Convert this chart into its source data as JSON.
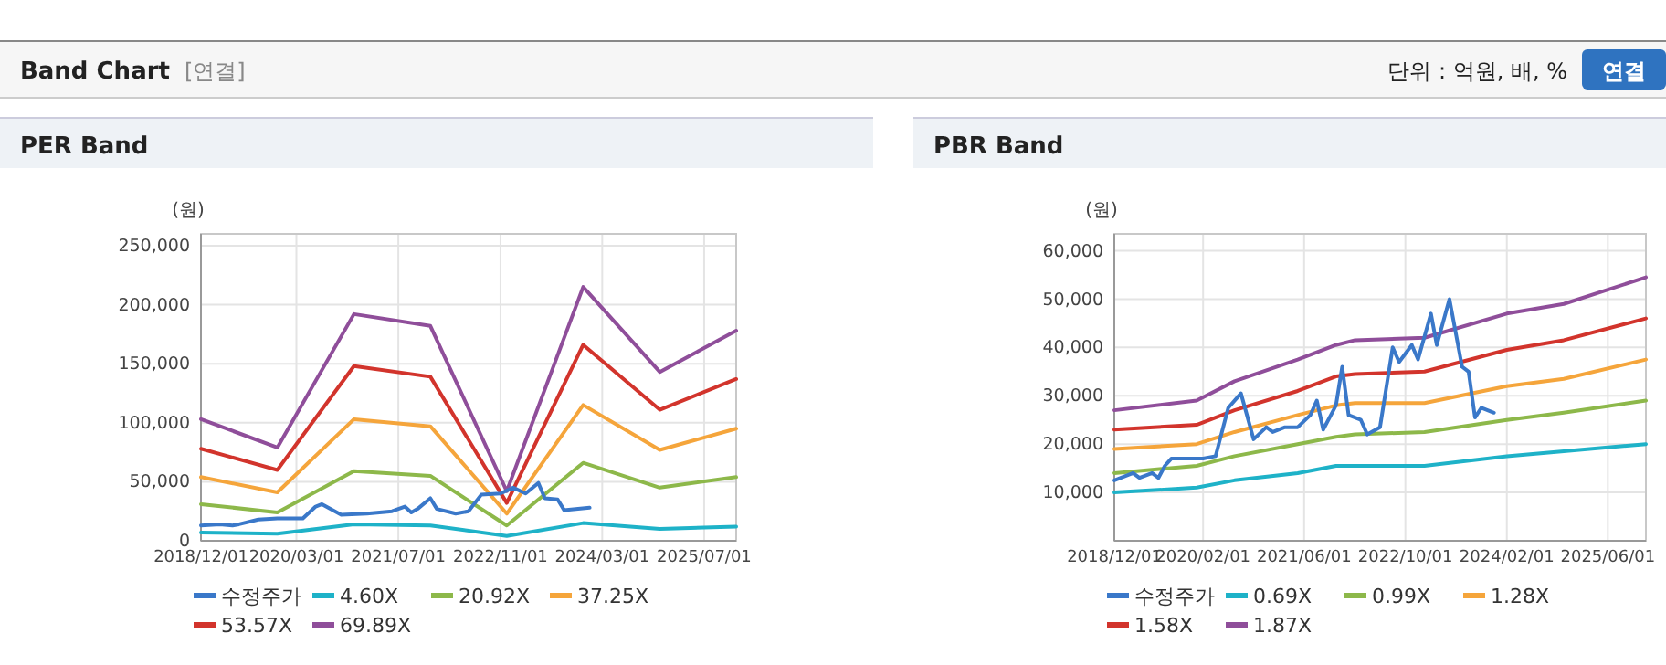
{
  "chart_data": [
    {
      "type": "other",
      "title": "Band Chart",
      "annotations": [
        "[연결]",
        "단위 : 억원, 배, %",
        "연결"
      ]
    },
    {
      "type": "line",
      "title": "PER Band",
      "ylabel": "(원)",
      "legend": "bottom",
      "grid": true,
      "marker": "none",
      "line_style": "solid",
      "xlim": [
        "2018-12",
        "2025-12"
      ],
      "xticks": [
        {
          "value": "2018-12",
          "label": "2018/12/01"
        },
        {
          "value": "2020-03",
          "label": "2020/03/01"
        },
        {
          "value": "2021-07",
          "label": "2021/07/01"
        },
        {
          "value": "2022-11",
          "label": "2022/11/01"
        },
        {
          "value": "2024-03",
          "label": "2024/03/01"
        },
        {
          "value": "2025-07",
          "label": "2025/07/01"
        }
      ],
      "ylim": [
        0,
        260000
      ],
      "yticks": [
        {
          "value": 0,
          "label": "0"
        },
        {
          "value": 50000,
          "label": "50,000"
        },
        {
          "value": 100000,
          "label": "100,000"
        },
        {
          "value": 150000,
          "label": "150,000"
        },
        {
          "value": 200000,
          "label": "200,000"
        },
        {
          "value": 250000,
          "label": "250,000"
        }
      ],
      "series": [
        {
          "name": "수정주가",
          "color": "#3a78c9",
          "x": [
            "2018-12",
            "2019-03",
            "2019-05",
            "2019-06",
            "2019-09",
            "2019-12",
            "2020-04",
            "2020-06",
            "2020-07",
            "2020-10",
            "2021-02",
            "2021-06",
            "2021-08",
            "2021-09",
            "2021-10",
            "2021-12",
            "2022-01",
            "2022-04",
            "2022-06",
            "2022-08",
            "2022-11",
            "2023-01",
            "2023-03",
            "2023-05",
            "2023-06",
            "2023-08",
            "2023-09",
            "2024-01"
          ],
          "values": [
            13000,
            14000,
            13000,
            14000,
            18000,
            19000,
            19000,
            29000,
            31000,
            22000,
            23000,
            25000,
            29000,
            24000,
            27000,
            36000,
            27000,
            23000,
            25000,
            39000,
            40000,
            45000,
            40000,
            49000,
            36000,
            35000,
            26000,
            28000
          ]
        },
        {
          "name": "4.60X",
          "color": "#1eb2c8",
          "x": [
            "2018-12",
            "2019-12",
            "2020-12",
            "2021-12",
            "2022-12",
            "2023-12",
            "2024-12",
            "2025-12"
          ],
          "values": [
            7000,
            6000,
            14000,
            13000,
            4000,
            15000,
            10000,
            12000
          ]
        },
        {
          "name": "20.92X",
          "color": "#8db84a",
          "x": [
            "2018-12",
            "2019-12",
            "2020-12",
            "2021-12",
            "2022-12",
            "2023-12",
            "2024-12",
            "2025-12"
          ],
          "values": [
            31000,
            24000,
            59000,
            55000,
            13000,
            66000,
            45000,
            54000
          ]
        },
        {
          "name": "37.25X",
          "color": "#f5a53b",
          "x": [
            "2018-12",
            "2019-12",
            "2020-12",
            "2021-12",
            "2022-12",
            "2023-12",
            "2024-12",
            "2025-12"
          ],
          "values": [
            54000,
            41000,
            103000,
            97000,
            23000,
            115000,
            77000,
            95000
          ]
        },
        {
          "name": "53.57X",
          "color": "#d2342c",
          "x": [
            "2018-12",
            "2019-12",
            "2020-12",
            "2021-12",
            "2022-12",
            "2023-12",
            "2024-12",
            "2025-12"
          ],
          "values": [
            78000,
            60000,
            148000,
            139000,
            32000,
            166000,
            111000,
            137000
          ]
        },
        {
          "name": "69.89X",
          "color": "#8f4e9a",
          "x": [
            "2018-12",
            "2019-12",
            "2020-12",
            "2021-12",
            "2022-12",
            "2023-12",
            "2024-12",
            "2025-12"
          ],
          "values": [
            103000,
            79000,
            192000,
            182000,
            42000,
            215000,
            143000,
            178000
          ]
        }
      ]
    },
    {
      "type": "line",
      "title": "PBR Band",
      "ylabel": "(원)",
      "legend": "bottom",
      "grid": true,
      "marker": "none",
      "line_style": "solid",
      "xlim": [
        "2018-12",
        "2025-12"
      ],
      "xticks": [
        {
          "value": "2018-12",
          "label": "2018/12/01"
        },
        {
          "value": "2020-02",
          "label": "2020/02/01"
        },
        {
          "value": "2021-06",
          "label": "2021/06/01"
        },
        {
          "value": "2022-10",
          "label": "2022/10/01"
        },
        {
          "value": "2024-02",
          "label": "2024/02/01"
        },
        {
          "value": "2025-06",
          "label": "2025/06/01"
        }
      ],
      "ylim": [
        0,
        63500
      ],
      "yticks": [
        {
          "value": 10000,
          "label": "10,000"
        },
        {
          "value": 20000,
          "label": "20,000"
        },
        {
          "value": 30000,
          "label": "30,000"
        },
        {
          "value": 40000,
          "label": "40,000"
        },
        {
          "value": 50000,
          "label": "50,000"
        },
        {
          "value": 60000,
          "label": "60,000"
        }
      ],
      "series": [
        {
          "name": "수정주가",
          "color": "#3a78c9",
          "x": [
            "2018-12",
            "2019-01",
            "2019-03",
            "2019-04",
            "2019-06",
            "2019-07",
            "2019-08",
            "2019-09",
            "2019-12",
            "2020-02",
            "2020-04",
            "2020-06",
            "2020-08",
            "2020-10",
            "2020-12",
            "2021-01",
            "2021-03",
            "2021-05",
            "2021-07",
            "2021-08",
            "2021-09",
            "2021-11",
            "2021-12",
            "2022-01",
            "2022-03",
            "2022-04",
            "2022-06",
            "2022-08",
            "2022-09",
            "2022-11",
            "2022-12",
            "2023-02",
            "2023-03",
            "2023-05",
            "2023-07",
            "2023-08",
            "2023-09",
            "2023-10",
            "2023-12"
          ],
          "values": [
            12500,
            13000,
            14000,
            13000,
            14000,
            13000,
            15500,
            17000,
            17000,
            17000,
            17500,
            27500,
            30500,
            21000,
            23500,
            22500,
            23500,
            23500,
            26000,
            29000,
            23000,
            28000,
            36000,
            26000,
            25000,
            22000,
            23500,
            40000,
            37000,
            40500,
            37500,
            47000,
            40500,
            50000,
            36000,
            35000,
            25500,
            27500,
            26500
          ]
        },
        {
          "name": "0.69X",
          "color": "#1eb2c8",
          "x": [
            "2018-12",
            "2020-01",
            "2020-07",
            "2021-05",
            "2021-11",
            "2022-02",
            "2023-01",
            "2024-02",
            "2024-11",
            "2025-12"
          ],
          "values": [
            10000,
            11000,
            12500,
            14000,
            15500,
            15500,
            15500,
            17500,
            18500,
            20000
          ]
        },
        {
          "name": "0.99X",
          "color": "#8db84a",
          "x": [
            "2018-12",
            "2020-01",
            "2020-07",
            "2021-05",
            "2021-11",
            "2022-02",
            "2023-01",
            "2024-02",
            "2024-11",
            "2025-12"
          ],
          "values": [
            14000,
            15500,
            17500,
            20000,
            21500,
            22000,
            22500,
            25000,
            26500,
            29000
          ]
        },
        {
          "name": "1.28X",
          "color": "#f5a53b",
          "x": [
            "2018-12",
            "2020-01",
            "2020-07",
            "2021-05",
            "2021-11",
            "2022-02",
            "2023-01",
            "2024-02",
            "2024-11",
            "2025-12"
          ],
          "values": [
            19000,
            20000,
            22500,
            26000,
            28000,
            28500,
            28500,
            32000,
            33500,
            37500
          ]
        },
        {
          "name": "1.58X",
          "color": "#d2342c",
          "x": [
            "2018-12",
            "2020-01",
            "2020-07",
            "2021-05",
            "2021-11",
            "2022-02",
            "2023-01",
            "2024-02",
            "2024-11",
            "2025-12"
          ],
          "values": [
            23000,
            24000,
            27000,
            31000,
            34000,
            34500,
            35000,
            39500,
            41500,
            46000
          ]
        },
        {
          "name": "1.87X",
          "color": "#8f4e9a",
          "x": [
            "2018-12",
            "2020-01",
            "2020-07",
            "2021-05",
            "2021-11",
            "2022-02",
            "2023-01",
            "2024-02",
            "2024-11",
            "2025-12"
          ],
          "values": [
            27000,
            29000,
            33000,
            37500,
            40500,
            41500,
            42000,
            47000,
            49000,
            54500
          ]
        }
      ]
    }
  ]
}
